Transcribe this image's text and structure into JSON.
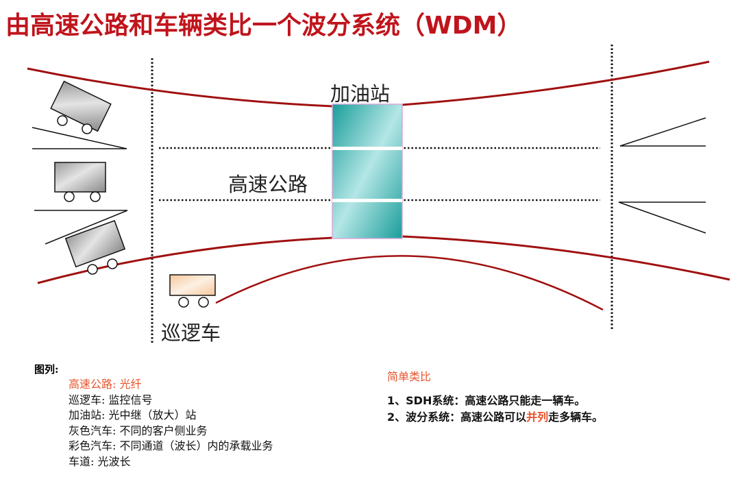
{
  "title": "由高速公路和车辆类比一个波分系统（WDM）",
  "diagram": {
    "station_label": "加油站",
    "highway_label": "高速公路",
    "patrol_label": "巡逻车"
  },
  "legend": {
    "heading": "图列:",
    "items": [
      {
        "term": "高速公路",
        "desc": "光纤"
      },
      {
        "term": "巡逻车",
        "desc": "监控信号"
      },
      {
        "term": "加油站",
        "desc": "光中继（放大）站"
      },
      {
        "term": "灰色汽车",
        "desc": "不同的客户侧业务"
      },
      {
        "term": "彩色汽车",
        "desc": "不同通道（波长）内的承载业务"
      },
      {
        "term": "车道",
        "desc": "光波长"
      }
    ]
  },
  "analogy": {
    "heading": "简单类比",
    "line1": "1、SDH系统：高速公路只能走一辆车。",
    "line2_pre": "2、波分系统：高速公路可以",
    "line2_highlight": "并列",
    "line2_post": "走多辆车。"
  },
  "colors": {
    "title": "#c0141c",
    "fiber": "#a01010",
    "highlight": "#e8532b"
  }
}
